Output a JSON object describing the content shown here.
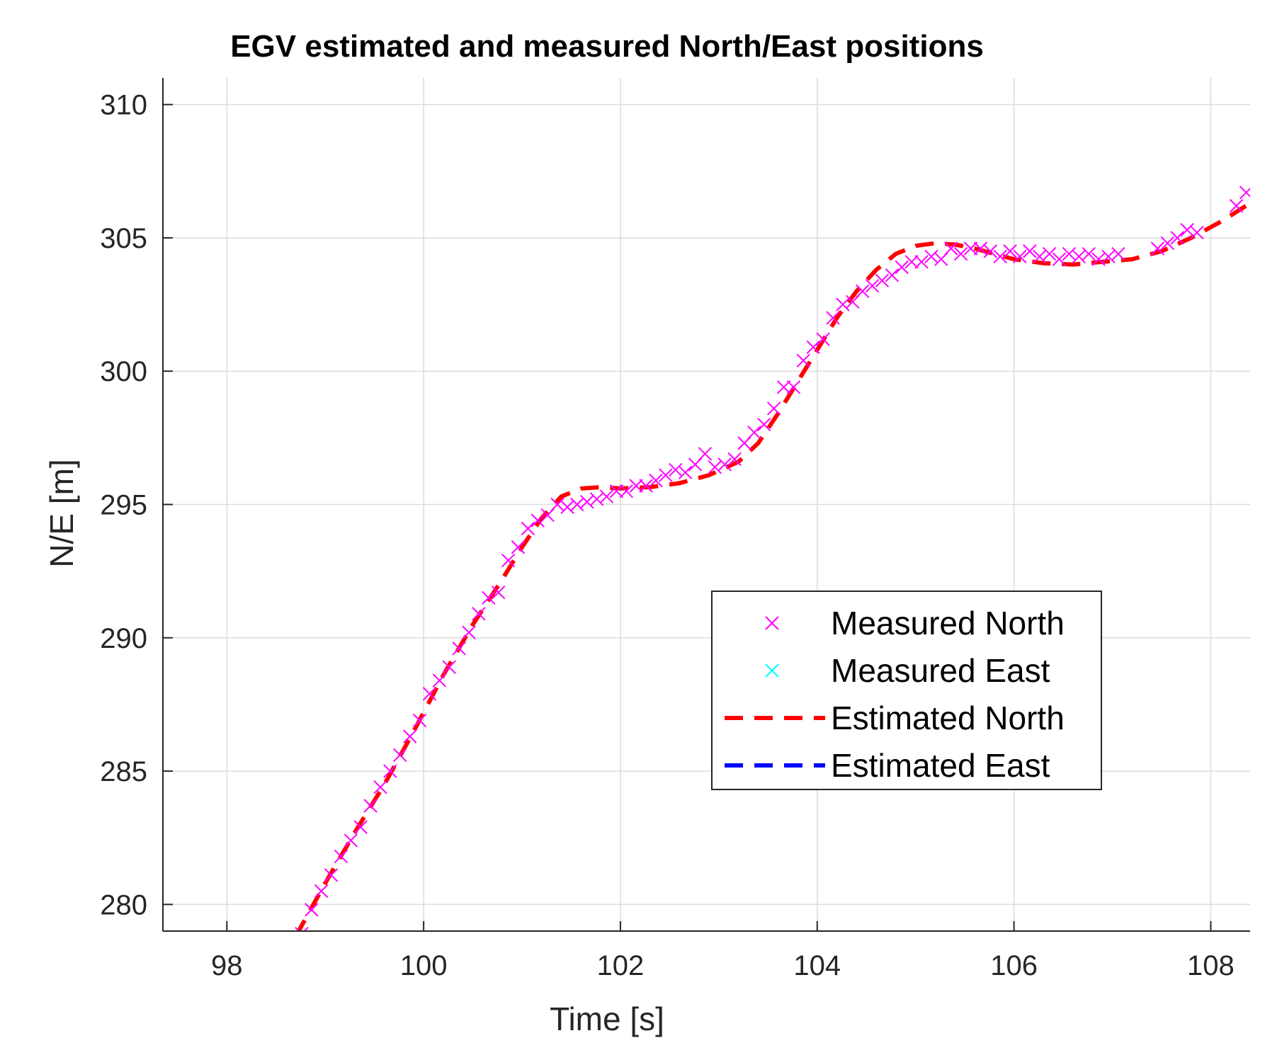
{
  "chart_data": {
    "type": "line",
    "title": "EGV estimated and measured North/East positions",
    "xlabel": "Time [s]",
    "ylabel": "N/E [m]",
    "xlim": [
      97.35,
      108.4
    ],
    "ylim": [
      279,
      311
    ],
    "xticks": [
      98,
      100,
      102,
      104,
      106,
      108
    ],
    "yticks": [
      280,
      285,
      290,
      295,
      300,
      305,
      310
    ],
    "grid": true,
    "legend_position": "center-right",
    "colors": {
      "measured_north": "#ff00ff",
      "measured_east": "#00ffff",
      "estimated_north": "#ff0000",
      "estimated_east": "#0000ff"
    },
    "legend": [
      "Measured North",
      "Measured East",
      "Estimated North",
      "Estimated East"
    ],
    "series": [
      {
        "name": "Measured North",
        "style": "marker-x",
        "x": [
          98.76,
          98.86,
          98.96,
          99.06,
          99.16,
          99.26,
          99.36,
          99.46,
          99.56,
          99.66,
          99.76,
          99.86,
          99.96,
          100.06,
          100.16,
          100.26,
          100.36,
          100.46,
          100.56,
          100.66,
          100.76,
          100.86,
          100.96,
          101.06,
          101.16,
          101.26,
          101.36,
          101.46,
          101.56,
          101.66,
          101.76,
          101.86,
          101.96,
          102.06,
          102.16,
          102.26,
          102.36,
          102.46,
          102.56,
          102.66,
          102.76,
          102.86,
          102.96,
          103.06,
          103.16,
          103.26,
          103.36,
          103.46,
          103.56,
          103.66,
          103.76,
          103.86,
          103.96,
          104.06,
          104.16,
          104.26,
          104.36,
          104.46,
          104.56,
          104.66,
          104.76,
          104.86,
          104.96,
          105.06,
          105.16,
          105.26,
          105.36,
          105.46,
          105.56,
          105.66,
          105.76,
          105.86,
          105.96,
          106.06,
          106.16,
          106.26,
          106.36,
          106.46,
          106.56,
          106.66,
          106.76,
          106.86,
          106.96,
          107.06,
          107.46,
          107.56,
          107.66,
          107.76,
          107.86,
          108.26,
          108.36
        ],
        "y": [
          278.9,
          279.8,
          280.5,
          281.1,
          281.8,
          282.4,
          282.9,
          283.7,
          284.4,
          285.0,
          285.6,
          286.3,
          286.9,
          287.9,
          288.4,
          288.9,
          289.6,
          290.2,
          290.9,
          291.5,
          291.7,
          292.9,
          293.4,
          294.1,
          294.4,
          294.6,
          295.0,
          294.9,
          295.0,
          295.1,
          295.2,
          295.3,
          295.5,
          295.5,
          295.7,
          295.7,
          295.9,
          296.1,
          296.3,
          296.2,
          296.5,
          296.9,
          296.4,
          296.5,
          296.7,
          297.3,
          297.7,
          298.0,
          298.6,
          299.4,
          299.4,
          300.4,
          300.9,
          301.2,
          302.0,
          302.5,
          302.6,
          303.0,
          303.2,
          303.4,
          303.6,
          303.9,
          304.1,
          304.1,
          304.3,
          304.2,
          304.6,
          304.4,
          304.6,
          304.6,
          304.5,
          304.3,
          304.5,
          304.3,
          304.5,
          304.3,
          304.4,
          304.2,
          304.4,
          304.3,
          304.4,
          304.2,
          304.3,
          304.4,
          304.6,
          304.8,
          305.0,
          305.3,
          305.2,
          306.2,
          306.7
        ]
      },
      {
        "name": "Measured East",
        "style": "marker-x",
        "x": [],
        "y": []
      },
      {
        "name": "Estimated North",
        "style": "dashed",
        "x": [
          98.7,
          99.0,
          99.3,
          99.6,
          99.9,
          100.2,
          100.5,
          100.8,
          101.0,
          101.2,
          101.4,
          101.6,
          101.8,
          102.0,
          102.3,
          102.6,
          102.9,
          103.2,
          103.4,
          103.6,
          103.8,
          104.0,
          104.2,
          104.4,
          104.6,
          104.8,
          105.0,
          105.2,
          105.4,
          105.6,
          105.8,
          106.0,
          106.3,
          106.6,
          106.9,
          107.2,
          107.5,
          107.8,
          108.1,
          108.4
        ],
        "y": [
          278.8,
          280.8,
          282.7,
          284.5,
          286.5,
          288.6,
          290.5,
          292.2,
          293.4,
          294.5,
          295.3,
          295.6,
          295.65,
          295.6,
          295.65,
          295.8,
          296.1,
          296.6,
          297.3,
          298.4,
          299.6,
          300.8,
          302.0,
          303.0,
          303.8,
          304.4,
          304.7,
          304.8,
          304.75,
          304.6,
          304.4,
          304.2,
          304.05,
          304.0,
          304.1,
          304.2,
          304.5,
          305.0,
          305.6,
          306.3
        ]
      },
      {
        "name": "Estimated East",
        "style": "dashed",
        "x": [],
        "y": []
      }
    ]
  }
}
